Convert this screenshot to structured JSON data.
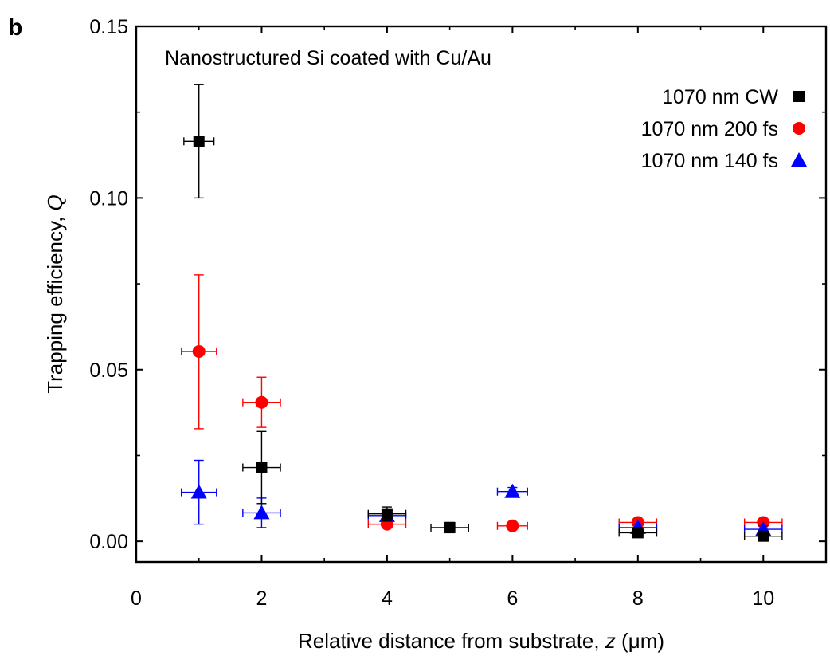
{
  "panel_label": "b",
  "chart_data": {
    "type": "scatter",
    "title": "Nanostructured Si coated with Cu/Au",
    "xlabel_main": "Relative distance from substrate, ",
    "xlabel_var": "z",
    "xlabel_unit": " (μm)",
    "ylabel_main": "Trapping efficiency, ",
    "ylabel_var": "Q",
    "xlim": [
      0,
      11
    ],
    "ylim": [
      -0.006,
      0.15
    ],
    "x_ticks": [
      0,
      2,
      4,
      6,
      8,
      10
    ],
    "x_tick_labels": [
      "0",
      "2",
      "4",
      "6",
      "8",
      "10"
    ],
    "y_ticks": [
      0.0,
      0.05,
      0.1,
      0.15
    ],
    "y_tick_labels": [
      "0.00",
      "0.05",
      "0.10",
      "0.15"
    ],
    "grid": false,
    "legend_position": "top-right",
    "series": [
      {
        "name": "1070 nm CW",
        "color": "#000000",
        "marker": "square",
        "points": [
          {
            "x": 1,
            "y": 0.1165,
            "xerr": 0.24,
            "yerr_low": 0.0165,
            "yerr_high": 0.0165
          },
          {
            "x": 2,
            "y": 0.0215,
            "xerr": 0.3,
            "yerr_low": 0.0105,
            "yerr_high": 0.0105
          },
          {
            "x": 4,
            "y": 0.008,
            "xerr": 0.3,
            "yerr_low": 0.002,
            "yerr_high": 0.002
          },
          {
            "x": 5,
            "y": 0.004,
            "xerr": 0.3,
            "yerr_low": 0.0015,
            "yerr_high": 0.0015
          },
          {
            "x": 8,
            "y": 0.0025,
            "xerr": 0.3,
            "yerr_low": 0.001,
            "yerr_high": 0.001
          },
          {
            "x": 10,
            "y": 0.0015,
            "xerr": 0.3,
            "yerr_low": 0.001,
            "yerr_high": 0.001
          }
        ]
      },
      {
        "name": "1070 nm 200 fs",
        "color": "#ff0000",
        "marker": "circle",
        "points": [
          {
            "x": 1,
            "y": 0.0553,
            "xerr": 0.28,
            "yerr_low": 0.0225,
            "yerr_high": 0.0223
          },
          {
            "x": 2,
            "y": 0.0405,
            "xerr": 0.3,
            "yerr_low": 0.0073,
            "yerr_high": 0.0073
          },
          {
            "x": 4,
            "y": 0.005,
            "xerr": 0.3,
            "yerr_low": 0.001,
            "yerr_high": 0.001
          },
          {
            "x": 6,
            "y": 0.0045,
            "xerr": 0.24,
            "yerr_low": 0.0005,
            "yerr_high": 0.0005
          },
          {
            "x": 8,
            "y": 0.0055,
            "xerr": 0.3,
            "yerr_low": 0.0008,
            "yerr_high": 0.0008
          },
          {
            "x": 10,
            "y": 0.0055,
            "xerr": 0.3,
            "yerr_low": 0.0008,
            "yerr_high": 0.0008
          }
        ]
      },
      {
        "name": "1070 nm 140 fs",
        "color": "#0000ff",
        "marker": "triangle",
        "points": [
          {
            "x": 1,
            "y": 0.0143,
            "xerr": 0.28,
            "yerr_low": 0.0093,
            "yerr_high": 0.0093
          },
          {
            "x": 2,
            "y": 0.0083,
            "xerr": 0.3,
            "yerr_low": 0.0043,
            "yerr_high": 0.0043
          },
          {
            "x": 4,
            "y": 0.0075,
            "xerr": 0.3,
            "yerr_low": 0.001,
            "yerr_high": 0.001
          },
          {
            "x": 6,
            "y": 0.0145,
            "xerr": 0.24,
            "yerr_low": 0.0012,
            "yerr_high": 0.0012
          },
          {
            "x": 8,
            "y": 0.004,
            "xerr": 0.3,
            "yerr_low": 0.001,
            "yerr_high": 0.001
          },
          {
            "x": 10,
            "y": 0.0035,
            "xerr": 0.3,
            "yerr_low": 0.001,
            "yerr_high": 0.001
          }
        ]
      }
    ]
  }
}
